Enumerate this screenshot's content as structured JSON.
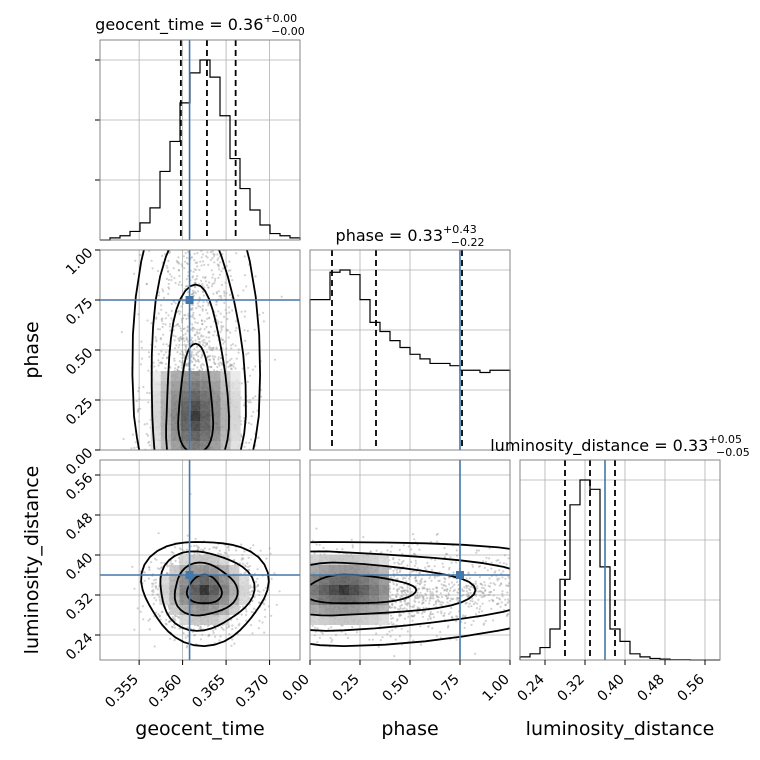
{
  "chart_data": {
    "type": "corner",
    "parameters": [
      "geocent_time",
      "phase",
      "luminosity_distance"
    ],
    "axis_labels": {
      "geocent_time": "geocent_time",
      "phase": "phase",
      "luminosity_distance": "luminosity_distance"
    },
    "ranges": {
      "geocent_time": [
        0.3505,
        0.3735
      ],
      "phase": [
        0.0,
        1.0
      ],
      "luminosity_distance": [
        0.19,
        0.59
      ]
    },
    "ticks": {
      "geocent_time": [
        0.355,
        0.36,
        0.365,
        0.37
      ],
      "phase": [
        0.0,
        0.25,
        0.5,
        0.75,
        1.0
      ],
      "luminosity_distance": [
        0.24,
        0.32,
        0.4,
        0.48,
        0.56
      ]
    },
    "tick_labels": {
      "geocent_time": [
        "0.355",
        "0.360",
        "0.365",
        "0.370"
      ],
      "phase": [
        "0.00",
        "0.25",
        "0.50",
        "0.75",
        "1.00"
      ],
      "luminosity_distance": [
        "0.24",
        "0.32",
        "0.40",
        "0.48",
        "0.56"
      ]
    },
    "titles": [
      {
        "param": "geocent_time",
        "name": "geocent_time",
        "median": "0.36",
        "plus": "+0.00",
        "minus": "−0.00"
      },
      {
        "param": "phase",
        "name": "phase",
        "median": "0.33",
        "plus": "+0.43",
        "minus": "−0.22"
      },
      {
        "param": "luminosity_distance",
        "name": "luminosity_distance",
        "median": "0.33",
        "plus": "+0.05",
        "minus": "−0.05"
      }
    ],
    "truths": {
      "geocent_time": 0.3608,
      "phase": 0.75,
      "luminosity_distance": 0.36
    },
    "quantiles": {
      "geocent_time": [
        0.3598,
        0.3628,
        0.3661
      ],
      "phase": [
        0.11,
        0.33,
        0.76
      ],
      "luminosity_distance": [
        0.28,
        0.33,
        0.38
      ]
    },
    "histograms": {
      "geocent_time": {
        "edges_start": 0.3505,
        "bin_width": 0.00115,
        "counts": [
          0,
          1,
          2,
          4,
          8,
          15,
          32,
          46,
          64,
          78,
          84,
          76,
          58,
          38,
          24,
          14,
          7,
          3,
          2,
          1
        ]
      },
      "phase": {
        "edges_start": 0.0,
        "bin_width": 0.05,
        "counts": [
          66,
          66,
          78,
          79,
          77,
          66,
          56,
          52,
          48,
          45,
          42,
          40,
          38,
          38,
          37,
          35,
          35,
          34,
          35,
          35
        ]
      },
      "luminosity_distance": {
        "edges_start": 0.19,
        "bin_width": 0.02,
        "counts": [
          1,
          2,
          4,
          10,
          26,
          50,
          58,
          55,
          30,
          10,
          6,
          2,
          1,
          0.5,
          0.3,
          0.1,
          0.1,
          0,
          0,
          0
        ]
      }
    },
    "peaks_2d": {
      "geocent_time__phase": [
        0.3615,
        0.17
      ],
      "geocent_time__luminosity_distance": [
        0.3625,
        0.33
      ],
      "phase__luminosity_distance": [
        0.17,
        0.33
      ]
    }
  }
}
